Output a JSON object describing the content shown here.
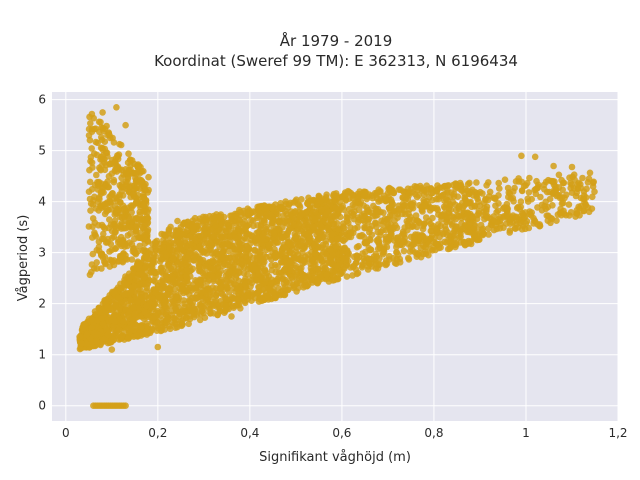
{
  "chart_data": {
    "type": "scatter",
    "title_lines": [
      "År 1979 - 2019",
      "Koordinat (Sweref 99 TM): E 362313, N 6196434"
    ],
    "xlabel": "Signifikant våghöjd (m)",
    "ylabel": "Vågperiod (s)",
    "xlim": [
      -0.03,
      1.2
    ],
    "ylim": [
      -0.3,
      6.15
    ],
    "x_ticks": [
      0,
      0.2,
      0.4,
      0.6,
      0.8,
      1,
      1.2
    ],
    "x_tick_labels": [
      "0",
      "0,2",
      "0,4",
      "0,6",
      "0,8",
      "1",
      "1,2"
    ],
    "y_ticks": [
      0,
      1,
      2,
      3,
      4,
      5,
      6
    ],
    "y_tick_labels": [
      "0",
      "1",
      "2",
      "3",
      "4",
      "5",
      "6"
    ],
    "grid": true,
    "marker_color": "#d4a017",
    "background_color": "#e5e5ef",
    "clusters": [
      {
        "x": [
          0.03,
          0.23
        ],
        "y_low": [
          1.1,
          1.5
        ],
        "y_high": [
          1.5,
          3.6
        ],
        "n": 900
      },
      {
        "x": [
          0.23,
          0.6
        ],
        "y_low": [
          1.5,
          2.5
        ],
        "y_high": [
          3.6,
          4.2
        ],
        "n": 1600
      },
      {
        "x": [
          0.6,
          0.9
        ],
        "y_low": [
          2.5,
          3.2
        ],
        "y_high": [
          4.2,
          4.4
        ],
        "n": 700
      },
      {
        "x": [
          0.9,
          1.15
        ],
        "y_low": [
          3.2,
          3.8
        ],
        "y_high": [
          4.4,
          4.6
        ],
        "n": 260
      },
      {
        "x": [
          0.05,
          0.18
        ],
        "y_low": [
          2.5,
          3.0
        ],
        "y_high": [
          5.9,
          4.5
        ],
        "n": 450
      }
    ],
    "outliers": [
      {
        "x": 0.15,
        "y": 1.8
      },
      {
        "x": 0.19,
        "y": 1.72
      },
      {
        "x": 0.22,
        "y": 1.68
      },
      {
        "x": 0.27,
        "y": 1.75
      },
      {
        "x": 0.33,
        "y": 1.78
      },
      {
        "x": 0.36,
        "y": 1.75
      },
      {
        "x": 0.1,
        "y": 1.1
      },
      {
        "x": 0.2,
        "y": 1.15
      },
      {
        "x": 1.02,
        "y": 4.88
      },
      {
        "x": 1.06,
        "y": 4.7
      },
      {
        "x": 0.99,
        "y": 4.9
      },
      {
        "x": 1.1,
        "y": 4.68
      },
      {
        "x": 0.08,
        "y": 5.75
      },
      {
        "x": 0.11,
        "y": 5.85
      },
      {
        "x": 0.13,
        "y": 5.5
      },
      {
        "x": 0.035,
        "y": 1.22
      },
      {
        "x": 0.03,
        "y": 1.35
      }
    ],
    "zero_points": {
      "x_range": [
        0.06,
        0.13
      ],
      "y": 0,
      "count": 16
    }
  }
}
